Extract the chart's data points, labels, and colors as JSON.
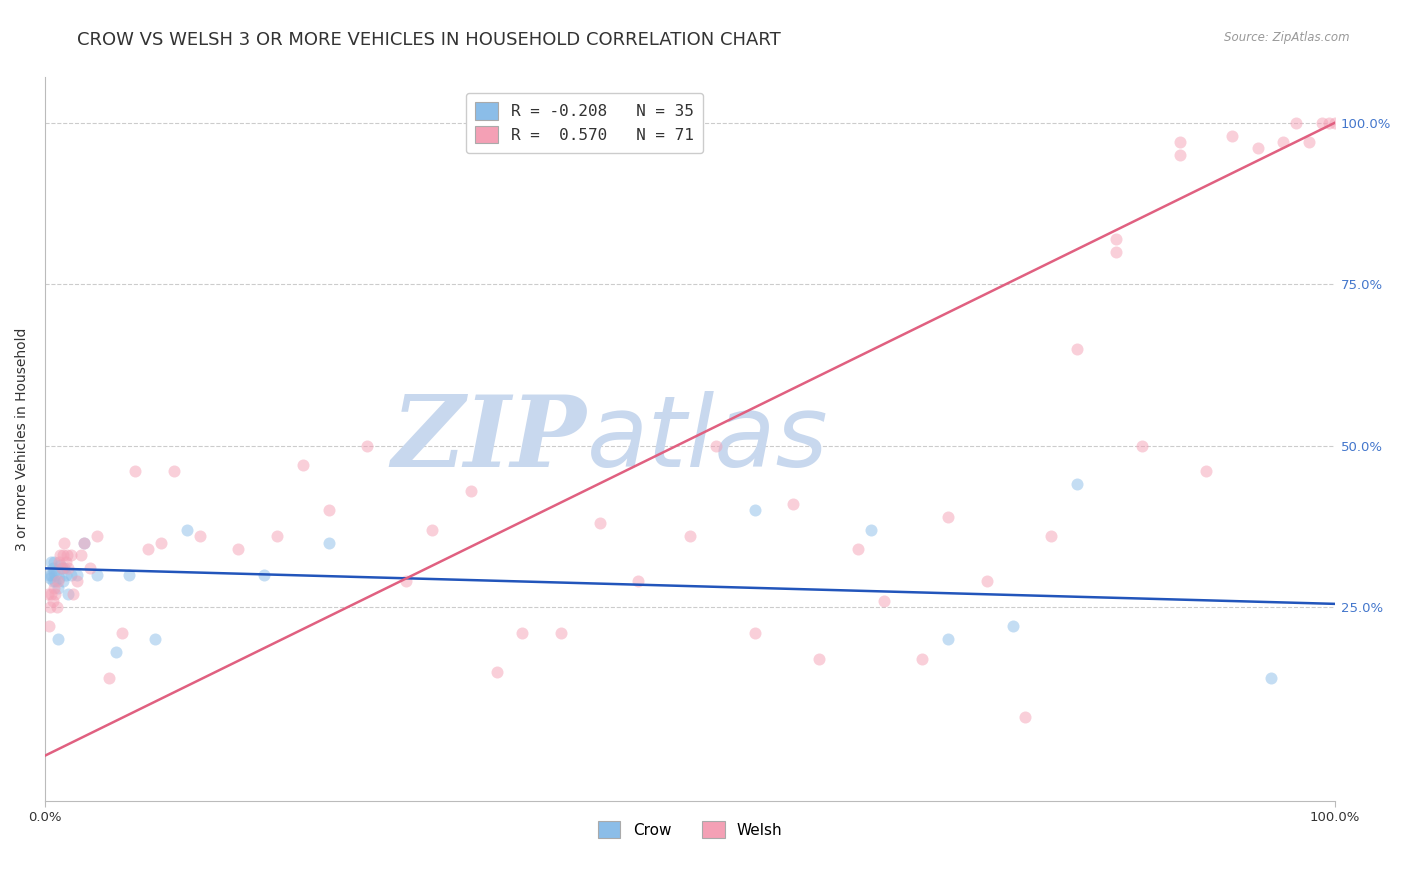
{
  "title": "CROW VS WELSH 3 OR MORE VEHICLES IN HOUSEHOLD CORRELATION CHART",
  "source": "Source: ZipAtlas.com",
  "ylabel": "3 or more Vehicles in Household",
  "xlim": [
    0,
    100
  ],
  "ylim": [
    -5,
    107
  ],
  "crow_R": -0.208,
  "crow_N": 35,
  "welsh_R": 0.57,
  "welsh_N": 71,
  "crow_color": "#8BBDE8",
  "welsh_color": "#F4A0B5",
  "crow_line_color": "#2255BB",
  "welsh_line_color": "#E06080",
  "background_color": "#FFFFFF",
  "watermark_zip": "ZIP",
  "watermark_atlas": "atlas",
  "crow_line_x": [
    0,
    100
  ],
  "crow_line_y": [
    31.0,
    25.5
  ],
  "welsh_line_x": [
    0,
    100
  ],
  "welsh_line_y": [
    2.0,
    100.0
  ],
  "crow_x": [
    0.3,
    0.4,
    0.5,
    0.5,
    0.6,
    0.6,
    0.7,
    0.7,
    0.8,
    0.8,
    1.0,
    1.0,
    1.1,
    1.2,
    1.3,
    1.4,
    1.5,
    1.6,
    1.8,
    2.0,
    2.5,
    3.0,
    4.0,
    5.5,
    6.5,
    8.5,
    11.0,
    17.0,
    22.0,
    55.0,
    64.0,
    70.0,
    75.0,
    80.0,
    95.0
  ],
  "crow_y": [
    30.0,
    29.5,
    32.0,
    30.0,
    29.0,
    31.0,
    30.5,
    32.0,
    30.0,
    29.0,
    20.0,
    28.0,
    29.5,
    31.5,
    31.0,
    29.0,
    31.0,
    30.0,
    27.0,
    30.0,
    30.0,
    35.0,
    30.0,
    18.0,
    30.0,
    20.0,
    37.0,
    30.0,
    35.0,
    40.0,
    37.0,
    20.0,
    22.0,
    44.0,
    14.0
  ],
  "welsh_x": [
    0.2,
    0.3,
    0.4,
    0.5,
    0.6,
    0.7,
    0.8,
    0.9,
    1.0,
    1.1,
    1.2,
    1.3,
    1.4,
    1.5,
    1.6,
    1.7,
    1.8,
    2.0,
    2.2,
    2.5,
    2.8,
    3.0,
    3.5,
    4.0,
    5.0,
    6.0,
    7.0,
    8.0,
    9.0,
    10.0,
    12.0,
    15.0,
    18.0,
    20.0,
    22.0,
    25.0,
    28.0,
    30.0,
    33.0,
    35.0,
    37.0,
    40.0,
    43.0,
    46.0,
    50.0,
    52.0,
    55.0,
    58.0,
    60.0,
    63.0,
    65.0,
    68.0,
    70.0,
    73.0,
    76.0,
    78.0,
    80.0,
    83.0,
    85.0,
    88.0,
    90.0,
    92.0,
    94.0,
    96.0,
    97.0,
    98.0,
    99.0,
    99.5,
    100.0,
    83.0,
    88.0
  ],
  "welsh_y": [
    27.0,
    22.0,
    25.0,
    27.0,
    26.0,
    28.0,
    27.0,
    25.0,
    29.0,
    32.0,
    33.0,
    31.0,
    33.0,
    35.0,
    32.0,
    33.0,
    31.0,
    33.0,
    27.0,
    29.0,
    33.0,
    35.0,
    31.0,
    36.0,
    14.0,
    21.0,
    46.0,
    34.0,
    35.0,
    46.0,
    36.0,
    34.0,
    36.0,
    47.0,
    40.0,
    50.0,
    29.0,
    37.0,
    43.0,
    15.0,
    21.0,
    21.0,
    38.0,
    29.0,
    36.0,
    50.0,
    21.0,
    41.0,
    17.0,
    34.0,
    26.0,
    17.0,
    39.0,
    29.0,
    8.0,
    36.0,
    65.0,
    80.0,
    50.0,
    97.0,
    46.0,
    98.0,
    96.0,
    97.0,
    100.0,
    97.0,
    100.0,
    100.0,
    100.0,
    82.0,
    95.0
  ],
  "xtick_vals": [
    0,
    100
  ],
  "xtick_labels": [
    "0.0%",
    "100.0%"
  ],
  "ytick_vals": [
    25,
    50,
    75,
    100
  ],
  "ytick_labels": [
    "25.0%",
    "50.0%",
    "75.0%",
    "100.0%"
  ],
  "grid_yvals": [
    25,
    50,
    75,
    100
  ],
  "grid_color": "#CCCCCC",
  "title_fontsize": 13,
  "axis_label_fontsize": 10,
  "tick_fontsize": 9.5,
  "marker_size": 75,
  "marker_alpha": 0.5,
  "line_width": 1.8
}
